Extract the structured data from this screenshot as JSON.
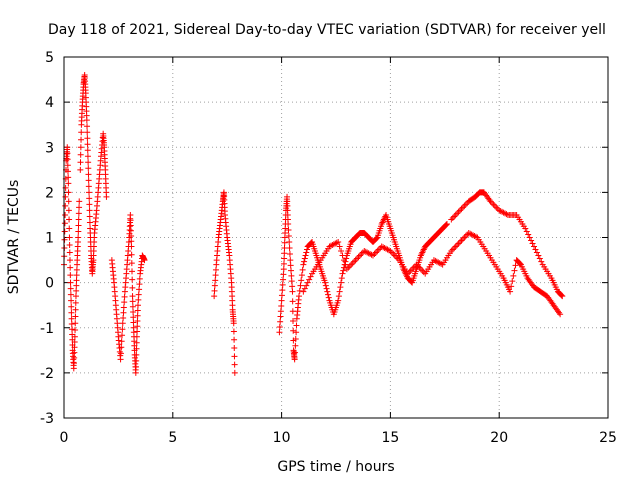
{
  "chart_data": {
    "type": "scatter",
    "title": "Day 118 of 2021, Sidereal Day-to-day VTEC variation (SDTVAR) for receiver yell",
    "xlabel": "GPS time / hours",
    "ylabel": "SDTVAR / TECUs",
    "xlim": [
      0,
      25
    ],
    "ylim": [
      -3,
      5
    ],
    "xticks": [
      0,
      5,
      10,
      15,
      20,
      25
    ],
    "yticks": [
      -3,
      -2,
      -1,
      0,
      1,
      2,
      3,
      4,
      5
    ],
    "grid": true,
    "marker": "+",
    "color": "#ff0000",
    "series": [
      {
        "name": "SDTVAR",
        "segments": [
          {
            "id": "early-low-spike",
            "points": [
              [
                0.0,
                0.4
              ],
              [
                0.05,
                1.5
              ],
              [
                0.1,
                2.7
              ],
              [
                0.15,
                3.0
              ],
              [
                0.2,
                2.2
              ],
              [
                0.25,
                1.0
              ],
              [
                0.3,
                0.0
              ],
              [
                0.35,
                -0.8
              ],
              [
                0.4,
                -1.5
              ],
              [
                0.45,
                -1.9
              ],
              [
                0.5,
                -1.2
              ],
              [
                0.55,
                -0.3
              ],
              [
                0.6,
                0.4
              ],
              [
                0.65,
                1.0
              ],
              [
                0.7,
                1.8
              ]
            ]
          },
          {
            "id": "early-high-spike",
            "points": [
              [
                0.75,
                2.5
              ],
              [
                0.8,
                3.5
              ],
              [
                0.85,
                4.0
              ],
              [
                0.9,
                4.4
              ],
              [
                0.95,
                4.6
              ],
              [
                1.0,
                4.2
              ],
              [
                1.05,
                3.6
              ],
              [
                1.1,
                2.8
              ],
              [
                1.15,
                2.0
              ],
              [
                1.2,
                1.2
              ],
              [
                1.25,
                0.6
              ],
              [
                1.3,
                0.2
              ],
              [
                1.35,
                0.5
              ],
              [
                1.4,
                1.1
              ],
              [
                1.5,
                1.6
              ],
              [
                1.6,
                2.2
              ],
              [
                1.7,
                2.8
              ],
              [
                1.8,
                3.3
              ],
              [
                1.85,
                3.0
              ],
              [
                1.9,
                2.5
              ],
              [
                1.95,
                1.9
              ]
            ]
          },
          {
            "id": "cluster-2h",
            "points": [
              [
                2.2,
                0.5
              ],
              [
                2.3,
                0.0
              ],
              [
                2.4,
                -0.6
              ],
              [
                2.5,
                -1.2
              ],
              [
                2.6,
                -1.7
              ],
              [
                2.7,
                -0.9
              ],
              [
                2.8,
                -0.2
              ],
              [
                2.9,
                0.4
              ],
              [
                3.0,
                1.0
              ],
              [
                3.05,
                1.5
              ],
              [
                3.1,
                0.8
              ],
              [
                3.15,
                -0.3
              ],
              [
                3.2,
                -1.0
              ],
              [
                3.25,
                -1.6
              ],
              [
                3.3,
                -2.0
              ],
              [
                3.35,
                -1.2
              ],
              [
                3.4,
                -0.5
              ],
              [
                3.5,
                0.2
              ],
              [
                3.6,
                0.6
              ],
              [
                3.7,
                0.5
              ]
            ]
          },
          {
            "id": "cluster-7h",
            "points": [
              [
                6.9,
                -0.3
              ],
              [
                7.0,
                0.4
              ],
              [
                7.1,
                1.0
              ],
              [
                7.2,
                1.4
              ],
              [
                7.3,
                1.8
              ],
              [
                7.35,
                2.0
              ],
              [
                7.4,
                1.5
              ],
              [
                7.5,
                1.0
              ],
              [
                7.6,
                0.6
              ],
              [
                7.7,
                0.0
              ],
              [
                7.75,
                -0.6
              ],
              [
                7.8,
                -0.9
              ],
              [
                7.85,
                -2.0
              ]
            ]
          },
          {
            "id": "rise-10h",
            "points": [
              [
                9.9,
                -1.1
              ],
              [
                10.0,
                -0.4
              ],
              [
                10.1,
                0.3
              ],
              [
                10.15,
                1.0
              ],
              [
                10.2,
                1.6
              ],
              [
                10.25,
                1.9
              ],
              [
                10.3,
                1.3
              ],
              [
                10.4,
                0.5
              ],
              [
                10.5,
                -0.2
              ],
              [
                10.55,
                -1.5
              ],
              [
                10.6,
                -1.7
              ],
              [
                10.7,
                -0.8
              ],
              [
                10.8,
                -0.3
              ],
              [
                11.0,
                0.4
              ],
              [
                11.2,
                0.8
              ],
              [
                11.4,
                0.9
              ],
              [
                11.6,
                0.6
              ],
              [
                11.8,
                0.3
              ],
              [
                12.0,
                0.0
              ],
              [
                12.2,
                -0.4
              ],
              [
                12.4,
                -0.7
              ],
              [
                12.6,
                -0.4
              ],
              [
                12.8,
                0.2
              ],
              [
                13.0,
                0.6
              ],
              [
                13.2,
                0.9
              ],
              [
                13.4,
                1.0
              ],
              [
                13.6,
                1.1
              ],
              [
                13.8,
                1.1
              ],
              [
                14.0,
                1.0
              ],
              [
                14.2,
                0.9
              ],
              [
                14.4,
                1.0
              ],
              [
                14.6,
                1.3
              ],
              [
                14.8,
                1.5
              ],
              [
                15.0,
                1.2
              ],
              [
                15.2,
                0.9
              ],
              [
                15.4,
                0.6
              ],
              [
                15.6,
                0.3
              ],
              [
                15.8,
                0.1
              ],
              [
                16.0,
                0.0
              ],
              [
                16.2,
                0.3
              ],
              [
                16.4,
                0.6
              ],
              [
                16.6,
                0.8
              ],
              [
                16.8,
                0.9
              ],
              [
                17.0,
                1.0
              ],
              [
                17.2,
                1.1
              ],
              [
                17.4,
                1.2
              ],
              [
                17.6,
                1.3
              ]
            ]
          },
          {
            "id": "secondary-track",
            "points": [
              [
                11.0,
                -0.2
              ],
              [
                11.4,
                0.2
              ],
              [
                11.8,
                0.5
              ],
              [
                12.2,
                0.8
              ],
              [
                12.6,
                0.9
              ],
              [
                13.0,
                0.3
              ],
              [
                13.4,
                0.5
              ],
              [
                13.8,
                0.7
              ],
              [
                14.2,
                0.6
              ],
              [
                14.6,
                0.8
              ],
              [
                15.0,
                0.7
              ],
              [
                15.4,
                0.5
              ],
              [
                15.8,
                0.2
              ],
              [
                16.2,
                0.4
              ],
              [
                16.6,
                0.2
              ],
              [
                17.0,
                0.5
              ],
              [
                17.4,
                0.4
              ],
              [
                17.8,
                0.7
              ],
              [
                18.2,
                0.9
              ],
              [
                18.6,
                1.1
              ],
              [
                19.0,
                1.0
              ],
              [
                19.4,
                0.7
              ],
              [
                19.8,
                0.4
              ],
              [
                20.2,
                0.1
              ],
              [
                20.5,
                -0.2
              ],
              [
                20.8,
                0.5
              ],
              [
                21.0,
                0.4
              ],
              [
                21.3,
                0.1
              ],
              [
                21.6,
                -0.1
              ],
              [
                21.9,
                -0.2
              ],
              [
                22.2,
                -0.3
              ],
              [
                22.5,
                -0.5
              ],
              [
                22.8,
                -0.7
              ]
            ]
          },
          {
            "id": "peak-19h",
            "points": [
              [
                17.8,
                1.4
              ],
              [
                18.2,
                1.6
              ],
              [
                18.6,
                1.8
              ],
              [
                18.9,
                1.9
              ],
              [
                19.1,
                2.0
              ],
              [
                19.3,
                2.0
              ],
              [
                19.6,
                1.8
              ],
              [
                20.0,
                1.6
              ],
              [
                20.4,
                1.5
              ],
              [
                20.8,
                1.5
              ],
              [
                21.2,
                1.2
              ],
              [
                21.6,
                0.8
              ],
              [
                22.0,
                0.4
              ],
              [
                22.4,
                0.1
              ],
              [
                22.7,
                -0.2
              ],
              [
                22.9,
                -0.3
              ]
            ]
          }
        ]
      }
    ]
  }
}
